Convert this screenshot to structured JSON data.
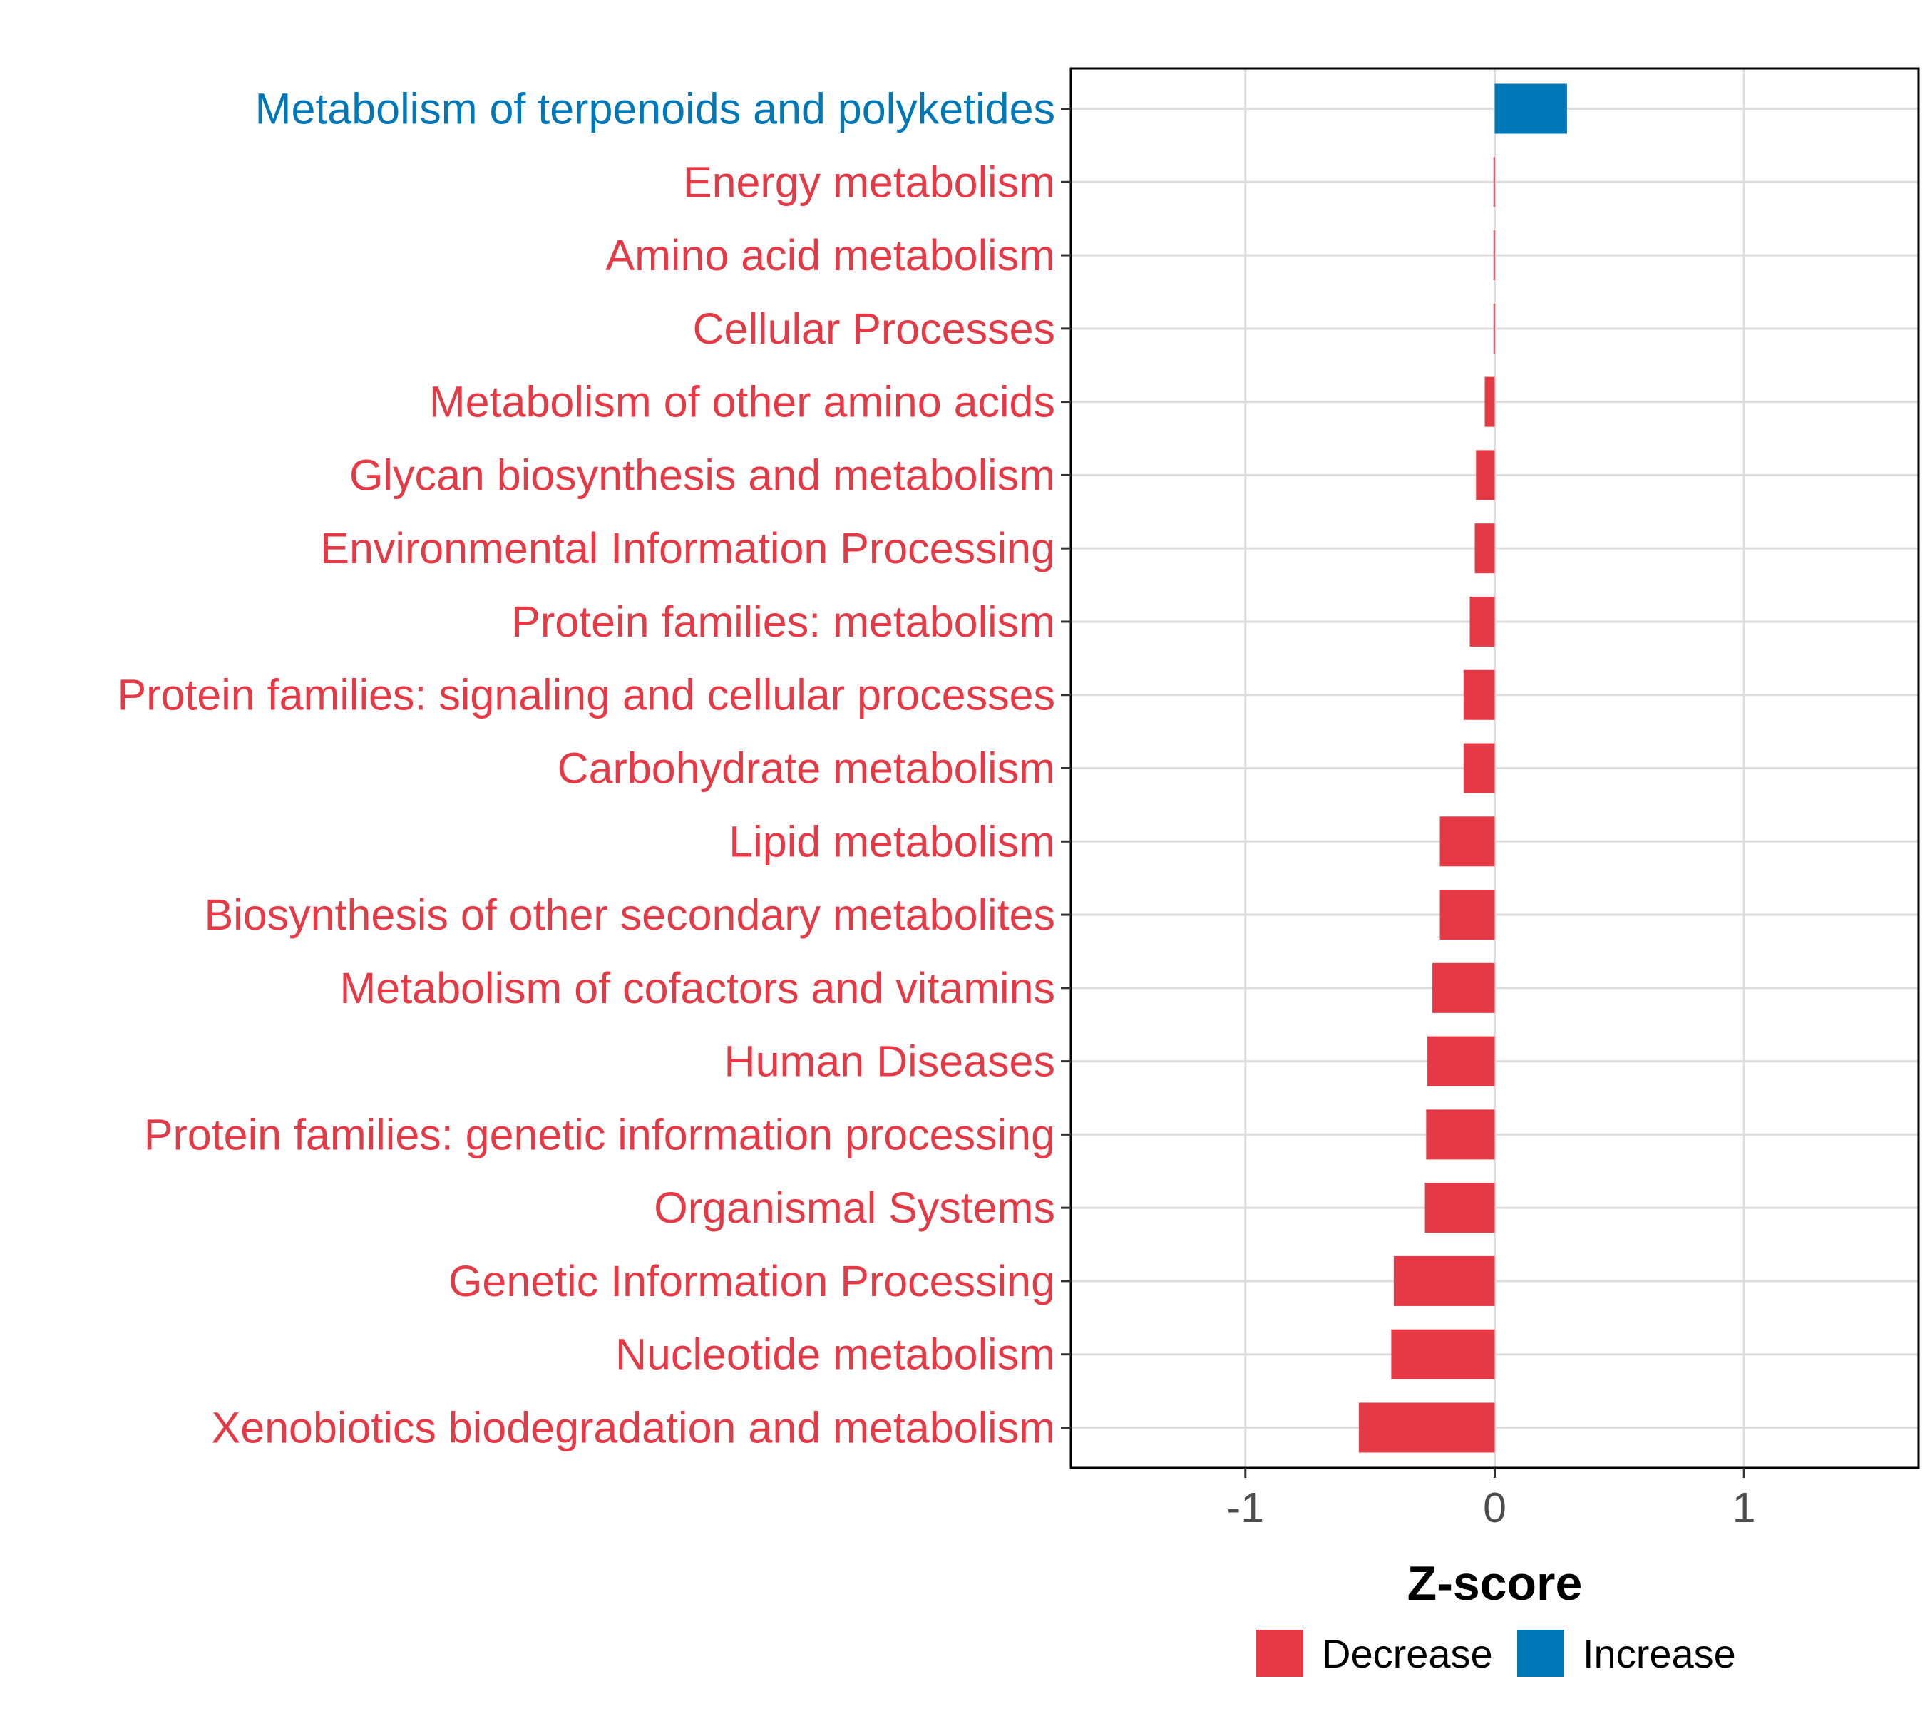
{
  "chart_data": {
    "type": "bar",
    "orientation": "horizontal",
    "xlabel": "Z-score",
    "ylabel": "",
    "xlim": [
      -1.7,
      1.7
    ],
    "x_ticks": [
      -1,
      0,
      1
    ],
    "x_tick_labels": [
      "-1",
      "0",
      "1"
    ],
    "grid": true,
    "categories": [
      "Metabolism of terpenoids and polyketides",
      "Energy metabolism",
      "Amino acid metabolism",
      "Cellular Processes",
      "Metabolism of other amino acids",
      "Glycan biosynthesis and metabolism",
      "Environmental Information Processing",
      "Protein families: metabolism",
      "Protein families: signaling and cellular processes",
      "Carbohydrate metabolism",
      "Lipid metabolism",
      "Biosynthesis of other secondary metabolites",
      "Metabolism of cofactors and vitamins",
      "Human Diseases",
      "Protein families: genetic information processing",
      "Organismal Systems",
      "Genetic Information Processing",
      "Nucleotide metabolism",
      "Xenobiotics biodegradation and metabolism"
    ],
    "values": [
      0.29,
      -0.005,
      -0.005,
      -0.005,
      -0.04,
      -0.075,
      -0.08,
      -0.1,
      -0.125,
      -0.125,
      -0.22,
      -0.22,
      -0.25,
      -0.27,
      -0.275,
      -0.28,
      -0.405,
      -0.415,
      -0.545
    ],
    "groups": [
      "Increase",
      "Decrease",
      "Decrease",
      "Decrease",
      "Decrease",
      "Decrease",
      "Decrease",
      "Decrease",
      "Decrease",
      "Decrease",
      "Decrease",
      "Decrease",
      "Decrease",
      "Decrease",
      "Decrease",
      "Decrease",
      "Decrease",
      "Decrease",
      "Decrease"
    ],
    "legend": {
      "position": "bottom",
      "entries": [
        {
          "label": "Decrease",
          "color": "#E63946"
        },
        {
          "label": "Increase",
          "color": "#0077B6"
        }
      ]
    }
  },
  "colors": {
    "decrease": "#E63946",
    "increase": "#0077B6",
    "grid": "#dddddd",
    "panel_border": "#000000"
  }
}
